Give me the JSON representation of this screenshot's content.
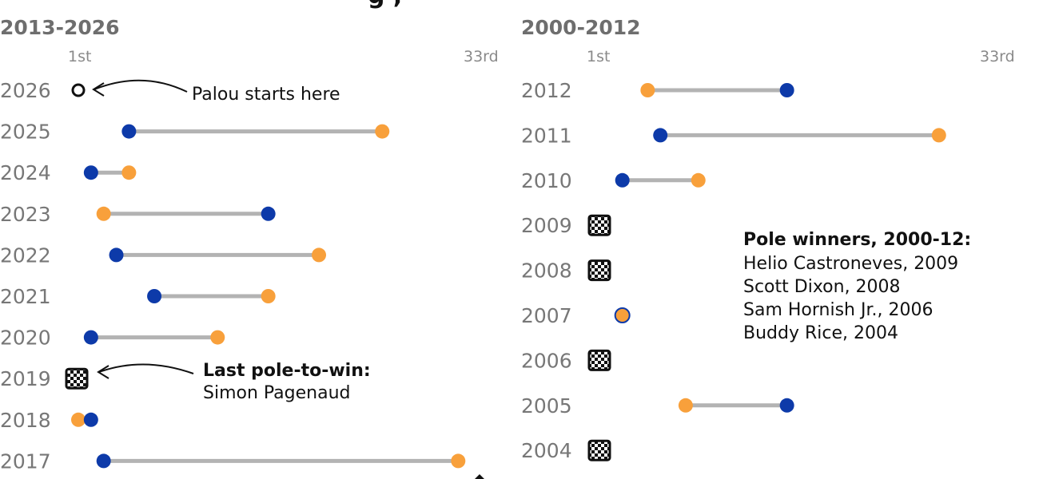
{
  "header": {
    "partial_text": "g ,"
  },
  "colors": {
    "blue": "#0d3aa9",
    "orange": "#f8a03b",
    "connector": "#b3b3b3",
    "text": "#111111",
    "muted": "#777777"
  },
  "chart_data": [
    {
      "type": "dumbbell",
      "title": "2013-2026",
      "scale": {
        "min": 1,
        "max": 33,
        "start_label": "1st",
        "end_label": "33rd"
      },
      "rows": [
        {
          "year": "2026",
          "blue": null,
          "orange": null,
          "marker": "open-circle",
          "marker_pos": 1
        },
        {
          "year": "2025",
          "blue": 5,
          "orange": 25,
          "marker": ""
        },
        {
          "year": "2024",
          "blue": 2,
          "orange": 5,
          "marker": ""
        },
        {
          "year": "2023",
          "blue": 16,
          "orange": 3,
          "marker": ""
        },
        {
          "year": "2022",
          "blue": 4,
          "orange": 20,
          "marker": ""
        },
        {
          "year": "2021",
          "blue": 7,
          "orange": 16,
          "marker": ""
        },
        {
          "year": "2020",
          "blue": 2,
          "orange": 12,
          "marker": ""
        },
        {
          "year": "2019",
          "blue": null,
          "orange": null,
          "marker": "checkered-flag"
        },
        {
          "year": "2018",
          "blue": 2,
          "orange": 1,
          "marker": ""
        },
        {
          "year": "2017",
          "blue": 3,
          "orange": 31,
          "marker": ""
        }
      ],
      "annotations": [
        {
          "row": "2026",
          "lines": [
            {
              "text": "Palou starts here",
              "bold": false
            }
          ]
        },
        {
          "row": "2019",
          "lines": [
            {
              "text": "Last pole-to-win:",
              "bold": true
            },
            {
              "text": "Simon Pagenaud",
              "bold": false
            }
          ]
        }
      ]
    },
    {
      "type": "dumbbell",
      "title": "2000-2012",
      "scale": {
        "min": 1,
        "max": 33,
        "start_label": "1st",
        "end_label": "33rd"
      },
      "rows": [
        {
          "year": "2012",
          "blue": 16,
          "orange": 5,
          "marker": ""
        },
        {
          "year": "2011",
          "blue": 6,
          "orange": 28,
          "marker": ""
        },
        {
          "year": "2010",
          "blue": 3,
          "orange": 9,
          "marker": ""
        },
        {
          "year": "2009",
          "blue": null,
          "orange": null,
          "marker": "checkered-flag"
        },
        {
          "year": "2008",
          "blue": null,
          "orange": null,
          "marker": "checkered-flag"
        },
        {
          "year": "2007",
          "blue": 3,
          "orange": 3,
          "marker": ""
        },
        {
          "year": "2006",
          "blue": null,
          "orange": null,
          "marker": "checkered-flag"
        },
        {
          "year": "2005",
          "blue": 16,
          "orange": 8,
          "marker": ""
        },
        {
          "year": "2004",
          "blue": null,
          "orange": null,
          "marker": "checkered-flag"
        }
      ],
      "annotations": [
        {
          "row": "",
          "lines": [
            {
              "text": "Pole winners, 2000-12:",
              "bold": true
            },
            {
              "text": "Helio Castroneves, 2009",
              "bold": false
            },
            {
              "text": "Scott Dixon, 2008",
              "bold": false
            },
            {
              "text": "Sam Hornish Jr., 2006",
              "bold": false
            },
            {
              "text": "Buddy Rice, 2004",
              "bold": false
            }
          ]
        }
      ]
    }
  ]
}
